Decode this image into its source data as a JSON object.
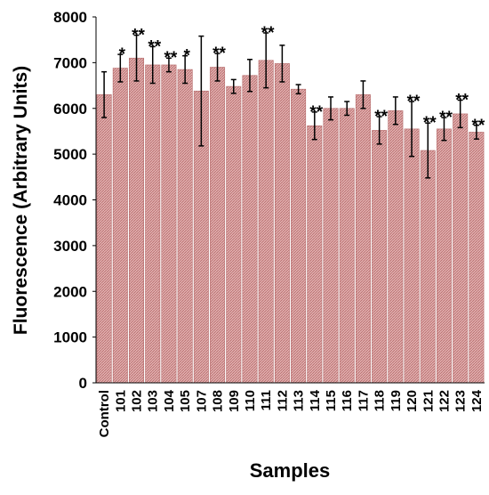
{
  "chart_data": {
    "type": "bar",
    "xlabel": "Samples",
    "ylabel": "Fluorescence (Arbitrary Units)",
    "categories": [
      "Control",
      "101",
      "102",
      "103",
      "104",
      "105",
      "107",
      "108",
      "109",
      "110",
      "111",
      "112",
      "113",
      "114",
      "115",
      "116",
      "117",
      "118",
      "119",
      "120",
      "121",
      "122",
      "123",
      "124"
    ],
    "values": [
      6300,
      6880,
      7100,
      6950,
      6950,
      6850,
      6380,
      6900,
      6480,
      6720,
      7050,
      6980,
      6420,
      5620,
      6000,
      6000,
      6300,
      5520,
      5950,
      5550,
      5080,
      5550,
      5880,
      5480
    ],
    "errors": [
      500,
      300,
      500,
      400,
      150,
      300,
      1200,
      300,
      150,
      350,
      600,
      400,
      100,
      300,
      250,
      150,
      300,
      300,
      300,
      600,
      600,
      250,
      300,
      150
    ],
    "annotations": [
      null,
      "*",
      "**",
      "**",
      "**",
      "*",
      null,
      "**",
      null,
      null,
      "**",
      null,
      null,
      "**",
      null,
      null,
      null,
      "**",
      null,
      "**",
      "**",
      "**",
      "**",
      "**"
    ],
    "color": "#d99a9a",
    "ylim": [
      0,
      8000
    ],
    "yticks": [
      0,
      1000,
      2000,
      3000,
      4000,
      5000,
      6000,
      7000,
      8000
    ]
  }
}
